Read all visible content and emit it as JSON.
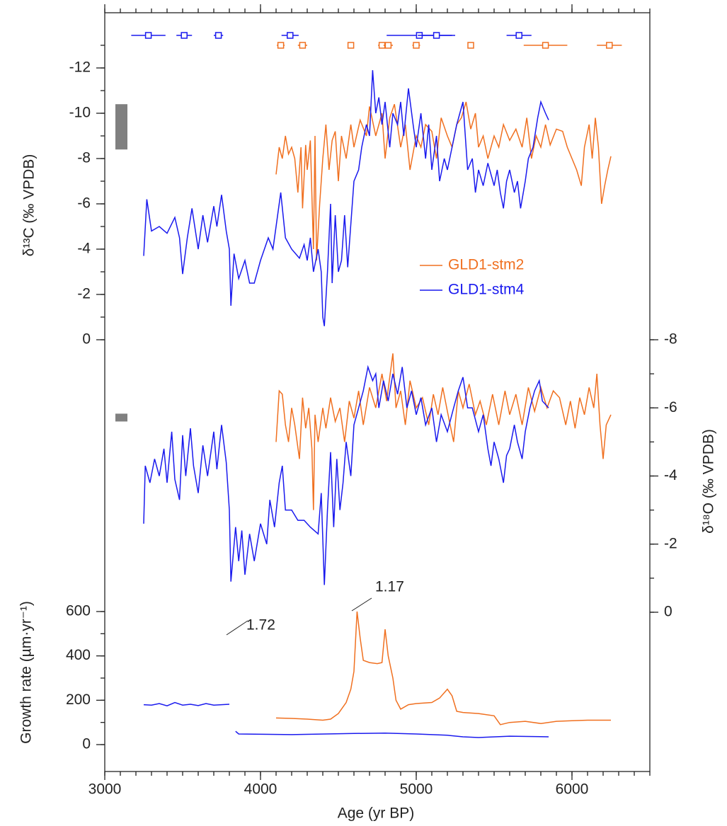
{
  "chart_data": {
    "type": "line",
    "xlabel": "Age (yr BP)",
    "xlim": [
      3000,
      6500
    ],
    "xticks": [
      3000,
      4000,
      5000,
      6000
    ],
    "xminor_step": 100,
    "panels": {
      "d13c": {
        "ylabel": "δ¹³C (‰ VPDB)",
        "ylim": [
          0,
          -12
        ],
        "yticks": [
          -12,
          -10,
          -8,
          -6,
          -4,
          -2,
          0
        ],
        "yminor_step": 1,
        "yminor_lim": [
          0,
          -13
        ],
        "error_bar": [
          -8.4,
          -10.4
        ]
      },
      "d18o": {
        "ylabel": "δ¹⁸O (‰ VPDB)",
        "y2lim": [
          0,
          -8
        ],
        "y2ticks": [
          -8,
          -6,
          -4,
          -2,
          0
        ],
        "yminor_step": 1,
        "error_bar": [
          -5.6,
          -5.83
        ]
      },
      "growth": {
        "ylabel": "Growth rate (µm·yr⁻¹)",
        "ylim": [
          0,
          600
        ],
        "yticks": [
          0,
          200,
          400,
          600
        ],
        "yminor_step": 100
      }
    },
    "annotations": [
      "1.17",
      "1.72"
    ],
    "series": [
      {
        "name": "GLD1-stm2",
        "color": "#f07020",
        "d13c": {
          "x": [
            4100,
            4120,
            4140,
            4160,
            4180,
            4200,
            4220,
            4240,
            4260,
            4270,
            4290,
            4300,
            4320,
            4340,
            4350,
            4360,
            4380,
            4400,
            4420,
            4440,
            4460,
            4480,
            4500,
            4520,
            4550,
            4580,
            4600,
            4640,
            4680,
            4700,
            4740,
            4780,
            4800,
            4830,
            4860,
            4900,
            4930,
            4960,
            5000,
            5030,
            5060,
            5100,
            5130,
            5160,
            5200,
            5230,
            5260,
            5290,
            5320,
            5350,
            5380,
            5400,
            5430,
            5460,
            5500,
            5530,
            5560,
            5600,
            5640,
            5680,
            5710,
            5740,
            5770,
            5800,
            5830,
            5860,
            5900,
            5940,
            5970,
            6000,
            6030,
            6060,
            6080,
            6110,
            6130,
            6150,
            6170,
            6190,
            6210,
            6230,
            6250
          ],
          "values": [
            -7.3,
            -8.5,
            -8,
            -9,
            -8.2,
            -8.5,
            -8,
            -6.5,
            -8.5,
            -5.8,
            -8.6,
            -7.5,
            -8.8,
            -4,
            -9,
            -3.5,
            -6,
            -8,
            -9.5,
            -7.5,
            -8.8,
            -9.2,
            -7,
            -9,
            -8,
            -9.5,
            -8.5,
            -9.7,
            -9,
            -10.3,
            -9,
            -10,
            -8,
            -9.8,
            -10.4,
            -8.5,
            -9.5,
            -7.5,
            -9,
            -8.5,
            -9.5,
            -9.2,
            -8,
            -9.8,
            -9,
            -8.5,
            -9.5,
            -9.8,
            -10.5,
            -9.3,
            -10,
            -8.5,
            -9,
            -8,
            -9,
            -8.5,
            -9.5,
            -8.8,
            -9.3,
            -8.5,
            -9.8,
            -8,
            -9,
            -8.5,
            -9.5,
            -8.6,
            -9.3,
            -9.2,
            -8.5,
            -8,
            -7.5,
            -6.8,
            -8.5,
            -9.5,
            -8,
            -9.8,
            -8.5,
            -6,
            -6.8,
            -7.5,
            -8.1
          ]
        },
        "d18o": {
          "x": [
            4100,
            4120,
            4140,
            4160,
            4180,
            4200,
            4220,
            4250,
            4270,
            4290,
            4310,
            4330,
            4340,
            4350,
            4370,
            4400,
            4420,
            4450,
            4480,
            4510,
            4540,
            4570,
            4600,
            4630,
            4660,
            4700,
            4740,
            4780,
            4810,
            4850,
            4870,
            4900,
            4930,
            4960,
            5000,
            5040,
            5080,
            5110,
            5140,
            5170,
            5200,
            5240,
            5270,
            5300,
            5340,
            5380,
            5410,
            5450,
            5490,
            5530,
            5570,
            5600,
            5640,
            5680,
            5720,
            5760,
            5800,
            5840,
            5880,
            5920,
            5960,
            5990,
            6020,
            6050,
            6080,
            6110,
            6140,
            6160,
            6180,
            6200,
            6220,
            6250
          ],
          "values": [
            -5,
            -6.5,
            -6.4,
            -5.5,
            -5,
            -6,
            -5.5,
            -4.5,
            -6.3,
            -5.4,
            -6,
            -4.8,
            -3,
            -5.8,
            -5,
            -6,
            -5.4,
            -6.3,
            -5.6,
            -6,
            -5,
            -6.2,
            -5.7,
            -6.5,
            -5.5,
            -6.6,
            -6,
            -7,
            -6.2,
            -7.6,
            -6,
            -6.5,
            -5.5,
            -6.8,
            -6,
            -6.3,
            -5.5,
            -6.4,
            -5.8,
            -6.6,
            -5.9,
            -5,
            -6.5,
            -6,
            -6.7,
            -5.8,
            -6.2,
            -5.5,
            -6.4,
            -5.5,
            -6.5,
            -5.8,
            -6.4,
            -5.5,
            -6.6,
            -5.9,
            -6.6,
            -6,
            -6.5,
            -6.3,
            -5.5,
            -6.2,
            -5.4,
            -6.3,
            -5.8,
            -6.6,
            -6,
            -7,
            -5.5,
            -4.5,
            -5.5,
            -5.8
          ]
        },
        "growth": {
          "x": [
            4100,
            4200,
            4300,
            4400,
            4450,
            4500,
            4550,
            4580,
            4600,
            4620,
            4640,
            4660,
            4700,
            4750,
            4780,
            4800,
            4820,
            4850,
            4870,
            4900,
            4950,
            5000,
            5100,
            5150,
            5200,
            5230,
            5260,
            5300,
            5400,
            5500,
            5540,
            5600,
            5700,
            5800,
            5900,
            6000,
            6100,
            6250
          ],
          "values": [
            120,
            118,
            115,
            110,
            115,
            140,
            190,
            250,
            330,
            600,
            480,
            380,
            370,
            365,
            370,
            520,
            400,
            300,
            200,
            160,
            180,
            185,
            190,
            210,
            250,
            220,
            150,
            145,
            140,
            130,
            90,
            100,
            105,
            95,
            105,
            108,
            110,
            110
          ]
        },
        "dates": {
          "values": [
            4130,
            4270,
            4580,
            4780,
            4820,
            5000,
            5350,
            5830,
            6240
          ],
          "errors": [
            25,
            30,
            20,
            25,
            30,
            25,
            15,
            140,
            80
          ]
        }
      },
      {
        "name": "GLD1-stm4",
        "color": "#1a1aee",
        "d13c": {
          "x": [
            3250,
            3270,
            3300,
            3350,
            3400,
            3450,
            3480,
            3500,
            3530,
            3560,
            3600,
            3630,
            3660,
            3700,
            3720,
            3750,
            3780,
            3800,
            3810,
            3830,
            3860,
            3900,
            3930,
            3960,
            4000,
            4050,
            4080,
            4100,
            4130,
            4160,
            4200,
            4250,
            4280,
            4300,
            4320,
            4340,
            4370,
            4390,
            4400,
            4410,
            4430,
            4450,
            4460,
            4480,
            4500,
            4520,
            4540,
            4560,
            4600,
            4630,
            4650,
            4680,
            4700,
            4720,
            4740,
            4760,
            4780,
            4800,
            4830,
            4850,
            4880,
            4900,
            4920,
            4950,
            4980,
            5000,
            5030,
            5060,
            5080,
            5100,
            5130,
            5150,
            5180,
            5200,
            5230,
            5260,
            5300,
            5330,
            5360,
            5380,
            5400,
            5430,
            5460,
            5500,
            5520,
            5540,
            5560,
            5580,
            5600,
            5630,
            5650,
            5670,
            5700,
            5720,
            5750,
            5780,
            5800,
            5830,
            5850
          ],
          "values": [
            -3.7,
            -6.2,
            -4.8,
            -5,
            -4.7,
            -5.4,
            -4.5,
            -2.9,
            -4.5,
            -5.8,
            -4,
            -5.5,
            -4.3,
            -5.9,
            -5,
            -6.4,
            -4.8,
            -4,
            -1.5,
            -3.8,
            -2.7,
            -3.5,
            -2.5,
            -2.5,
            -3.5,
            -4.5,
            -4,
            -5,
            -6.5,
            -4.5,
            -4,
            -3.6,
            -4.2,
            -3.5,
            -4.5,
            -3,
            -4,
            -3,
            -1,
            -0.6,
            -3,
            -6,
            -2.5,
            -5.5,
            -3,
            -3.5,
            -5.5,
            -3.2,
            -7,
            -7.5,
            -8.5,
            -9.5,
            -9,
            -11.9,
            -10,
            -10.7,
            -9.5,
            -10.5,
            -8.5,
            -10,
            -9.5,
            -10.5,
            -9,
            -11.1,
            -9.5,
            -8.5,
            -10,
            -8,
            -9.5,
            -7.5,
            -9,
            -7,
            -8,
            -7.5,
            -8.5,
            -9.5,
            -10.5,
            -7.5,
            -8,
            -6.5,
            -7.5,
            -6.8,
            -7.8,
            -6.8,
            -7.5,
            -6.5,
            -5.8,
            -7,
            -7.5,
            -6.5,
            -7,
            -5.8,
            -7,
            -8,
            -8.5,
            -9.8,
            -10.5,
            -10,
            -9.7
          ]
        },
        "d18o": {
          "x": [
            3250,
            3260,
            3290,
            3320,
            3350,
            3380,
            3400,
            3430,
            3450,
            3480,
            3500,
            3520,
            3550,
            3570,
            3600,
            3630,
            3660,
            3700,
            3720,
            3750,
            3780,
            3800,
            3810,
            3840,
            3860,
            3880,
            3900,
            3930,
            3960,
            4000,
            4040,
            4060,
            4090,
            4120,
            4140,
            4160,
            4200,
            4240,
            4280,
            4320,
            4370,
            4390,
            4410,
            4430,
            4450,
            4470,
            4490,
            4510,
            4530,
            4550,
            4580,
            4600,
            4630,
            4660,
            4690,
            4720,
            4740,
            4760,
            4790,
            4820,
            4850,
            4880,
            4910,
            4940,
            4970,
            5000,
            5030,
            5060,
            5100,
            5130,
            5160,
            5200,
            5240,
            5270,
            5300,
            5330,
            5360,
            5400,
            5430,
            5460,
            5480,
            5500,
            5530,
            5560,
            5580,
            5600,
            5630,
            5650,
            5680,
            5700,
            5730,
            5760,
            5790,
            5810,
            5850
          ],
          "values": [
            -2.6,
            -4.3,
            -3.8,
            -4.5,
            -4,
            -4.8,
            -3.8,
            -5.3,
            -3.9,
            -3.3,
            -5.2,
            -4,
            -5.4,
            -4.3,
            -3.5,
            -4.9,
            -4,
            -5.3,
            -4.2,
            -5.5,
            -4.4,
            -3,
            -0.9,
            -2.5,
            -1.5,
            -2.4,
            -1.1,
            -2.3,
            -1.5,
            -2.6,
            -2,
            -3.3,
            -2.5,
            -3.8,
            -4.3,
            -3,
            -3,
            -2.7,
            -2.7,
            -2.5,
            -2.3,
            -3.5,
            -0.8,
            -3,
            -4.7,
            -2.5,
            -4.5,
            -3,
            -3.8,
            -5,
            -4,
            -5.5,
            -6,
            -6.5,
            -7.2,
            -6.8,
            -7,
            -6,
            -6.8,
            -6.2,
            -7,
            -6.4,
            -7.2,
            -6,
            -6.5,
            -5.8,
            -6.3,
            -5.5,
            -6,
            -5,
            -5.8,
            -5.3,
            -6,
            -6.5,
            -6.9,
            -6,
            -6,
            -5.3,
            -5.8,
            -4.8,
            -4.3,
            -5,
            -4.5,
            -3.8,
            -4.6,
            -4.8,
            -5.5,
            -5,
            -4.5,
            -5.3,
            -6,
            -6.5,
            -6.8,
            -6.2,
            -6
          ]
        },
        "growth": {
          "x": [
            3250,
            3300,
            3350,
            3400,
            3450,
            3500,
            3550,
            3600,
            3650,
            3700,
            3750,
            3800,
            3820,
            3840,
            3860,
            4200,
            4600,
            4800,
            5000,
            5200,
            5300,
            5400,
            5600,
            5850
          ],
          "values": [
            180,
            178,
            185,
            175,
            190,
            178,
            182,
            176,
            185,
            178,
            180,
            182,
            null,
            60,
            48,
            45,
            50,
            52,
            48,
            42,
            35,
            32,
            38,
            35
          ]
        },
        "dates": {
          "values": [
            3280,
            3510,
            3730,
            4190,
            5020,
            5130,
            5660
          ],
          "errors": [
            110,
            50,
            30,
            55,
            210,
            120,
            80
          ]
        }
      }
    ]
  }
}
